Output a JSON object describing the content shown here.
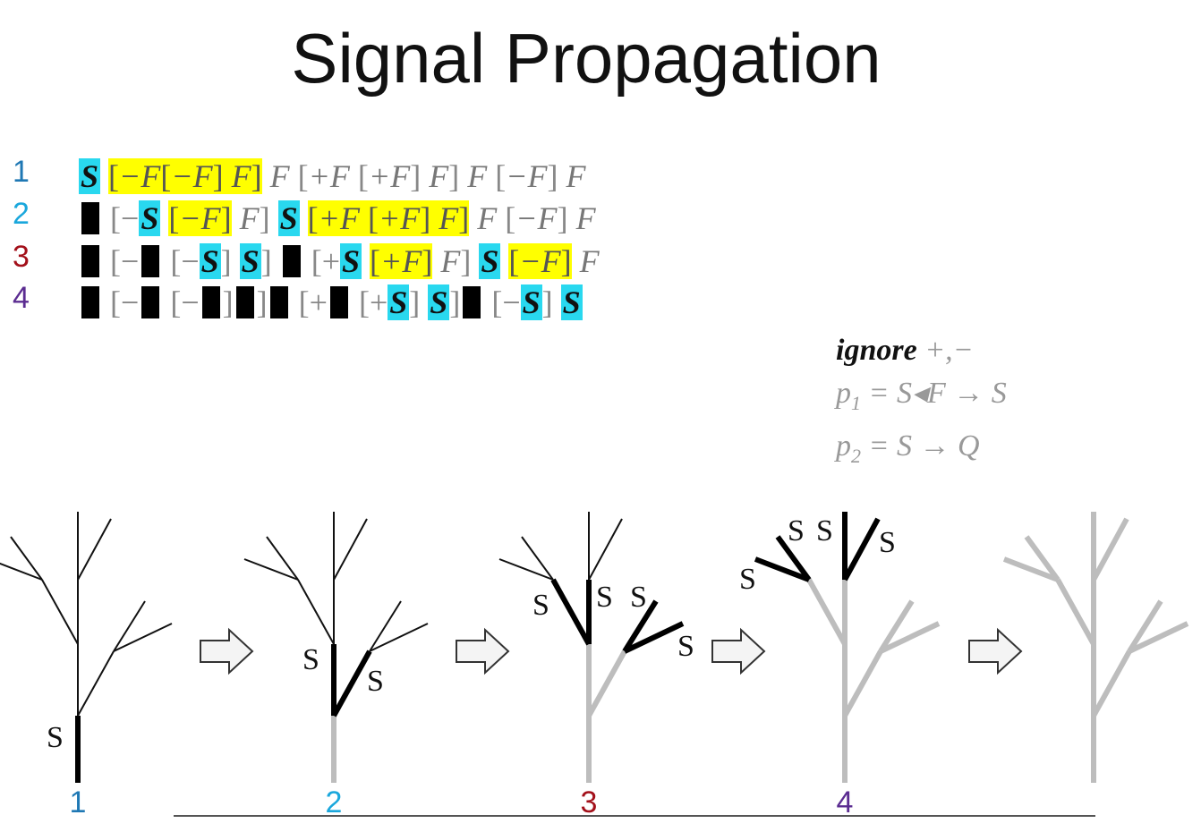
{
  "title": "Signal Propagation",
  "colors": {
    "signal": "#29d8ef",
    "highlight": "#ffff00",
    "row1": "#1f78b4",
    "row2": "#1aa7dc",
    "row3": "#a3101a",
    "row4": "#5b2c91",
    "inactive_branch": "#bdbdbd"
  },
  "rows": [
    {
      "num": "1",
      "tokens": [
        {
          "t": "S",
          "k": "s"
        },
        {
          "t": " ",
          "k": "sp"
        },
        {
          "k": "hl",
          "items": [
            {
              "t": "[",
              "k": "b"
            },
            {
              "t": "−F",
              "k": "f"
            },
            {
              "t": "[",
              "k": "b"
            },
            {
              "t": "−F",
              "k": "f"
            },
            {
              "t": "]",
              "k": "b"
            },
            {
              "t": " F",
              "k": "f"
            },
            {
              "t": "]",
              "k": "b"
            }
          ]
        },
        {
          "t": " F",
          "k": "f"
        },
        {
          "t": " [",
          "k": "b"
        },
        {
          "t": "+F",
          "k": "f"
        },
        {
          "t": " [",
          "k": "b"
        },
        {
          "t": "+F",
          "k": "f"
        },
        {
          "t": "]",
          "k": "b"
        },
        {
          "t": " F",
          "k": "f"
        },
        {
          "t": "]",
          "k": "b"
        },
        {
          "t": " F",
          "k": "f"
        },
        {
          "t": " [",
          "k": "b"
        },
        {
          "t": "−F",
          "k": "f"
        },
        {
          "t": "]",
          "k": "b"
        },
        {
          "t": " F",
          "k": "f"
        }
      ]
    },
    {
      "num": "2",
      "tokens": [
        {
          "k": "q"
        },
        {
          "t": " [",
          "k": "b"
        },
        {
          "t": "−",
          "k": "b"
        },
        {
          "t": "S",
          "k": "s"
        },
        {
          "t": " ",
          "k": "sp"
        },
        {
          "k": "hl",
          "items": [
            {
              "t": "[",
              "k": "b"
            },
            {
              "t": "−F",
              "k": "f"
            },
            {
              "t": "]",
              "k": "b"
            }
          ]
        },
        {
          "t": " F",
          "k": "f"
        },
        {
          "t": "]",
          "k": "b"
        },
        {
          "t": " ",
          "k": "sp"
        },
        {
          "t": "S",
          "k": "s"
        },
        {
          "t": " ",
          "k": "sp"
        },
        {
          "k": "hl",
          "items": [
            {
              "t": "[",
              "k": "b"
            },
            {
              "t": "+F",
              "k": "f"
            },
            {
              "t": " [",
              "k": "b"
            },
            {
              "t": "+F",
              "k": "f"
            },
            {
              "t": "]",
              "k": "b"
            },
            {
              "t": " F",
              "k": "f"
            },
            {
              "t": "]",
              "k": "b"
            }
          ]
        },
        {
          "t": " F",
          "k": "f"
        },
        {
          "t": " [",
          "k": "b"
        },
        {
          "t": "−F",
          "k": "f"
        },
        {
          "t": "]",
          "k": "b"
        },
        {
          "t": " F",
          "k": "f"
        }
      ]
    },
    {
      "num": "3",
      "tokens": [
        {
          "k": "q"
        },
        {
          "t": " [",
          "k": "b"
        },
        {
          "t": "−",
          "k": "b"
        },
        {
          "k": "q"
        },
        {
          "t": " [",
          "k": "b"
        },
        {
          "t": "−",
          "k": "b"
        },
        {
          "t": "S",
          "k": "s"
        },
        {
          "t": "] ",
          "k": "b"
        },
        {
          "t": "S",
          "k": "s"
        },
        {
          "t": "]",
          "k": "b"
        },
        {
          "t": " ",
          "k": "sp"
        },
        {
          "k": "q"
        },
        {
          "t": " [",
          "k": "b"
        },
        {
          "t": "+",
          "k": "b"
        },
        {
          "t": "S",
          "k": "s"
        },
        {
          "t": " ",
          "k": "sp"
        },
        {
          "k": "hl",
          "items": [
            {
              "t": "[",
              "k": "b"
            },
            {
              "t": "+F",
              "k": "f"
            },
            {
              "t": "]",
              "k": "b"
            }
          ]
        },
        {
          "t": " F",
          "k": "f"
        },
        {
          "t": "]",
          "k": "b"
        },
        {
          "t": " ",
          "k": "sp"
        },
        {
          "t": "S",
          "k": "s"
        },
        {
          "t": " ",
          "k": "sp"
        },
        {
          "k": "hl",
          "items": [
            {
              "t": "[",
              "k": "b"
            },
            {
              "t": "−F",
              "k": "f"
            },
            {
              "t": "]",
              "k": "b"
            }
          ]
        },
        {
          "t": " F",
          "k": "f"
        }
      ]
    },
    {
      "num": "4",
      "tokens": [
        {
          "k": "q"
        },
        {
          "t": " [",
          "k": "b"
        },
        {
          "t": "−",
          "k": "b"
        },
        {
          "k": "q"
        },
        {
          "t": " [",
          "k": "b"
        },
        {
          "t": "−",
          "k": "b"
        },
        {
          "k": "q"
        },
        {
          "t": "]",
          "k": "b"
        },
        {
          "k": "q"
        },
        {
          "t": "]",
          "k": "b"
        },
        {
          "k": "q"
        },
        {
          "t": " [",
          "k": "b"
        },
        {
          "t": "+",
          "k": "b"
        },
        {
          "k": "q"
        },
        {
          "t": " [",
          "k": "b"
        },
        {
          "t": "+",
          "k": "b"
        },
        {
          "t": "S",
          "k": "s"
        },
        {
          "t": "] ",
          "k": "b"
        },
        {
          "t": "S",
          "k": "s"
        },
        {
          "t": "]",
          "k": "b"
        },
        {
          "k": "q"
        },
        {
          "t": " [",
          "k": "b"
        },
        {
          "t": "−",
          "k": "b"
        },
        {
          "t": "S",
          "k": "s"
        },
        {
          "t": "] ",
          "k": "b"
        },
        {
          "t": "S",
          "k": "s"
        }
      ]
    }
  ],
  "rules": {
    "ignore_keyword": "ignore",
    "ignore_symbols": " +,−",
    "p1": {
      "name": "p",
      "index": "1",
      "rule": " = S◂F → S"
    },
    "p2": {
      "name": "p",
      "index": "2",
      "rule": " = S → Q"
    }
  },
  "stages": {
    "labels": [
      "1",
      "2",
      "3",
      "4"
    ],
    "signal_letter": "S"
  }
}
